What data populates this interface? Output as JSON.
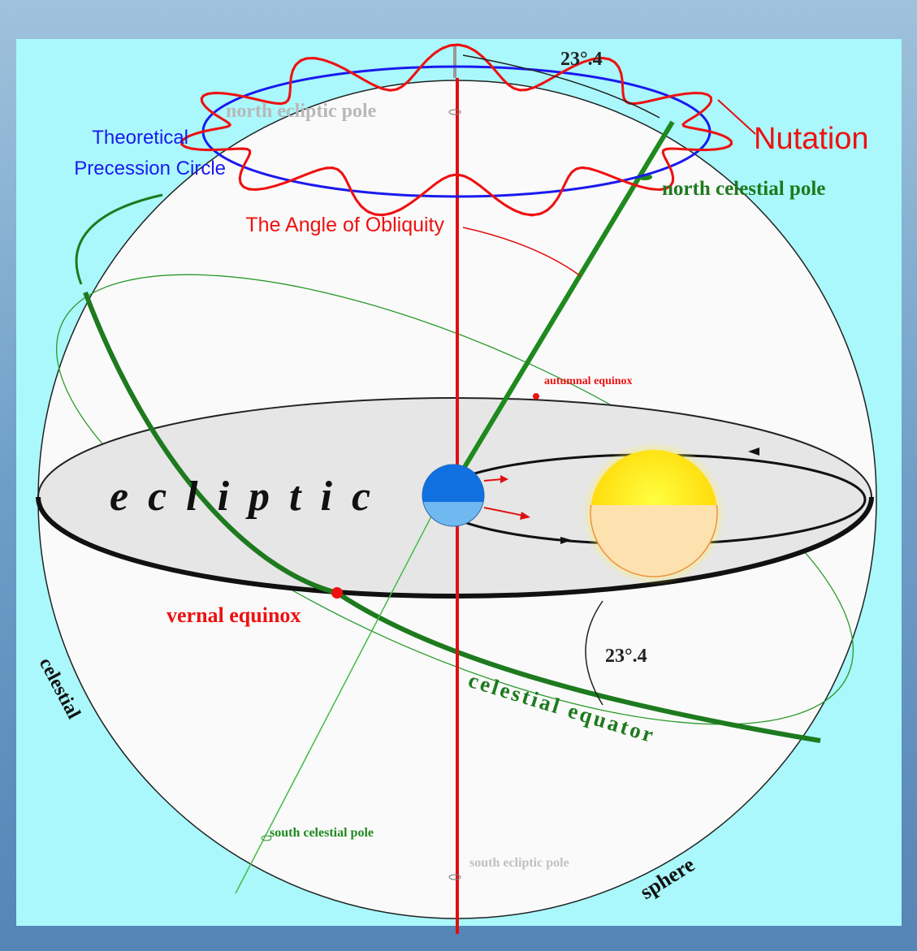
{
  "labels": {
    "top_angle": "23°.4",
    "north_ecliptic_pole": "north ecliptic pole",
    "precession_line1": "Theoretical",
    "precession_line2": "Precession Circle",
    "nutation": "Nutation",
    "north_celestial_pole": "north celestial pole",
    "obliquity": "The Angle of Obliquity",
    "autumnal_equinox": "autumnal equinox",
    "ecliptic": "ecliptic",
    "vernal_equinox": "vernal equinox",
    "bottom_angle": "23°.4",
    "celestial_equator": "celestial equator",
    "celestial": "celestial",
    "sphere": "sphere",
    "south_celestial_pole": "south celestial pole",
    "south_ecliptic_pole": "south ecliptic pole"
  }
}
